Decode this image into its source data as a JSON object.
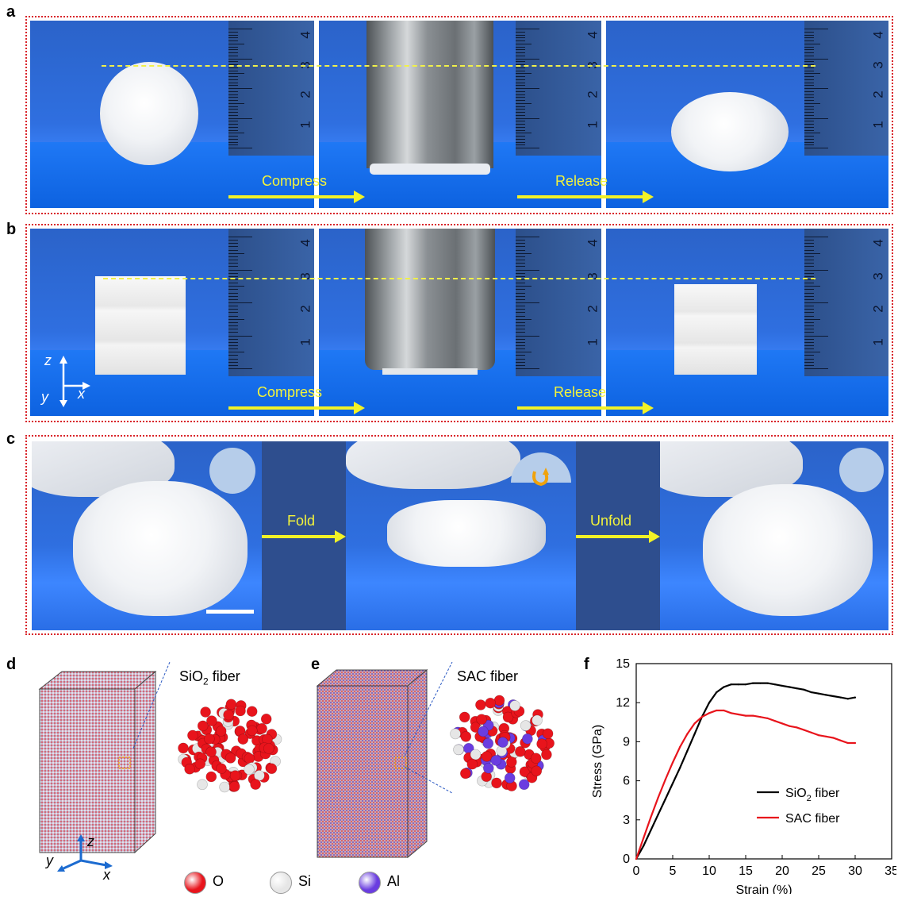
{
  "panels": {
    "a": "a",
    "b": "b",
    "c": "c",
    "d": "d",
    "e": "e",
    "f": "f"
  },
  "panel_a": {
    "compress_label": "Compress",
    "release_label": "Release",
    "ruler_numbers": [
      "4",
      "3",
      "2",
      "1"
    ]
  },
  "panel_b": {
    "compress_label": "Compress",
    "release_label": "Release",
    "ruler_numbers": [
      "4",
      "3",
      "2",
      "1"
    ],
    "axis_labels": {
      "z": "z",
      "y": "y",
      "x": "x"
    }
  },
  "panel_c": {
    "fold_label": "Fold",
    "unfold_label": "Unfold"
  },
  "panel_d": {
    "title": "SiO",
    "title_sub": "2",
    "title_tail": " fiber",
    "axis_labels": {
      "z": "z",
      "y": "y",
      "x": "x"
    }
  },
  "panel_e": {
    "title": "SAC fiber"
  },
  "legend_atoms": [
    {
      "label": "O",
      "color": "#e8141c"
    },
    {
      "label": "Si",
      "color": "#e6e6e6"
    },
    {
      "label": "Al",
      "color": "#6a3de0"
    }
  ],
  "chart_data": {
    "type": "line",
    "xlabel": "Strain (%)",
    "ylabel": "Stress (GPa)",
    "xlim": [
      0,
      35
    ],
    "ylim": [
      0,
      15
    ],
    "xticks": [
      "0",
      "5",
      "10",
      "15",
      "20",
      "25",
      "30",
      "35"
    ],
    "yticks": [
      "0",
      "3",
      "6",
      "9",
      "12",
      "15"
    ],
    "legend_position": "bottom-right",
    "series": [
      {
        "name": "SiO2 fiber",
        "name_main": "SiO",
        "name_sub": "2",
        "name_tail": " fiber",
        "color": "#000000",
        "x": [
          0,
          1,
          2,
          3,
          4,
          5,
          6,
          7,
          8,
          9,
          10,
          11,
          12,
          13,
          14,
          15,
          16,
          17,
          18,
          19,
          20,
          21,
          22,
          23,
          24,
          25,
          26,
          27,
          28,
          29,
          30
        ],
        "y": [
          0,
          1.0,
          2.2,
          3.4,
          4.6,
          5.8,
          7.0,
          8.3,
          9.6,
          10.9,
          12.0,
          12.8,
          13.2,
          13.4,
          13.4,
          13.4,
          13.5,
          13.5,
          13.5,
          13.4,
          13.3,
          13.2,
          13.1,
          13.0,
          12.8,
          12.7,
          12.6,
          12.5,
          12.4,
          12.3,
          12.4
        ]
      },
      {
        "name": "SAC fiber",
        "name_main": "SAC fiber",
        "color": "#e8141c",
        "x": [
          0,
          1,
          2,
          3,
          4,
          5,
          6,
          7,
          8,
          9,
          10,
          11,
          12,
          13,
          14,
          15,
          16,
          17,
          18,
          19,
          20,
          21,
          22,
          23,
          24,
          25,
          26,
          27,
          28,
          29,
          30
        ],
        "y": [
          0,
          1.6,
          3.2,
          4.7,
          6.1,
          7.4,
          8.6,
          9.6,
          10.4,
          10.9,
          11.2,
          11.4,
          11.4,
          11.2,
          11.1,
          11.0,
          11.0,
          10.9,
          10.8,
          10.6,
          10.4,
          10.2,
          10.1,
          9.9,
          9.7,
          9.5,
          9.4,
          9.3,
          9.1,
          8.9,
          8.9
        ]
      }
    ]
  }
}
